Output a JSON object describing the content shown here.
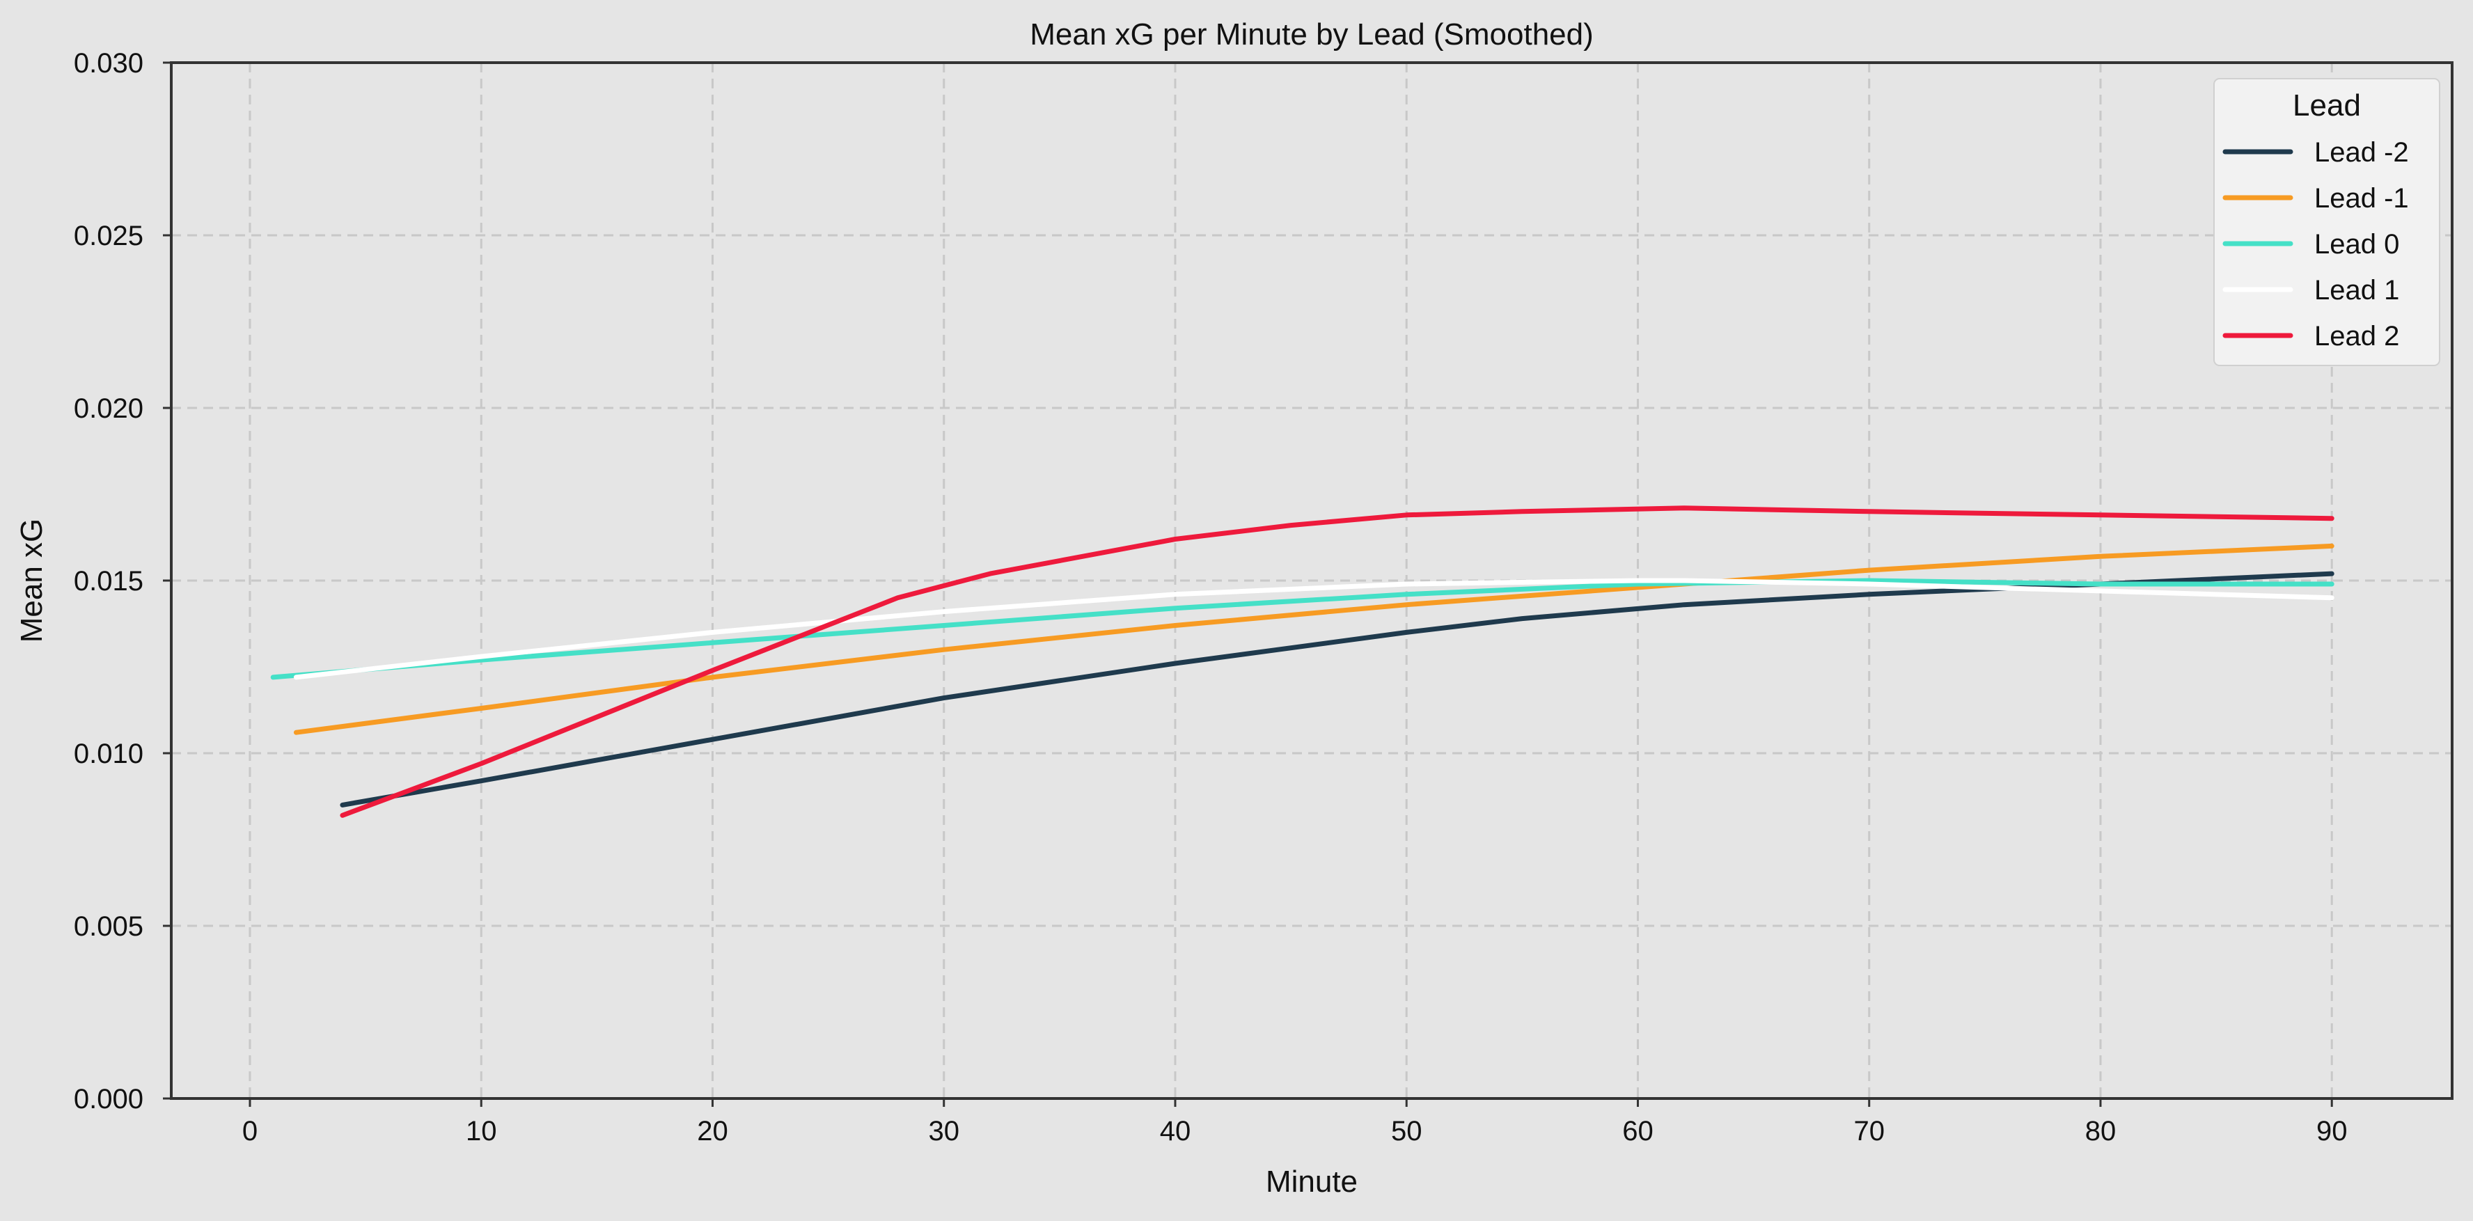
{
  "chart_data": {
    "type": "line",
    "title": "Mean xG per Minute by Lead (Smoothed)",
    "xlabel": "Minute",
    "ylabel": "Mean xG",
    "xlim": [
      -3.4,
      95.2
    ],
    "ylim": [
      0,
      0.03
    ],
    "xticks": [
      0,
      10,
      20,
      30,
      40,
      50,
      60,
      70,
      80,
      90
    ],
    "xtick_labels": [
      "0",
      "10",
      "20",
      "30",
      "40",
      "50",
      "60",
      "70",
      "80",
      "90"
    ],
    "yticks": [
      0,
      0.005,
      0.01,
      0.015,
      0.02,
      0.025,
      0.03
    ],
    "ytick_labels": [
      "0.000",
      "0.005",
      "0.010",
      "0.015",
      "0.020",
      "0.025",
      "0.030"
    ],
    "grid": true,
    "background_color": "#e5e5e5",
    "legend": {
      "title": "Lead",
      "placement": "top-right"
    },
    "series": [
      {
        "name": "Lead -2",
        "color": "#1f3a4d",
        "x": [
          4,
          10,
          20,
          30,
          40,
          50,
          55,
          62,
          70,
          80,
          90
        ],
        "y": [
          0.0085,
          0.0092,
          0.0104,
          0.0116,
          0.0126,
          0.0135,
          0.0139,
          0.0143,
          0.0146,
          0.0149,
          0.0152
        ]
      },
      {
        "name": "Lead -1",
        "color": "#f79b23",
        "x": [
          2,
          10,
          20,
          30,
          40,
          50,
          62,
          70,
          80,
          90
        ],
        "y": [
          0.0106,
          0.0113,
          0.0122,
          0.013,
          0.0137,
          0.0143,
          0.0149,
          0.0153,
          0.0157,
          0.016
        ]
      },
      {
        "name": "Lead 0",
        "color": "#45e0c7",
        "x": [
          1,
          10,
          20,
          30,
          40,
          50,
          60,
          70,
          80,
          90
        ],
        "y": [
          0.0122,
          0.0127,
          0.0132,
          0.0137,
          0.0142,
          0.0146,
          0.0149,
          0.015,
          0.0149,
          0.0149
        ]
      },
      {
        "name": "Lead 1",
        "color": "#ffffff",
        "x": [
          2,
          10,
          20,
          30,
          40,
          50,
          60,
          62,
          70,
          80,
          90
        ],
        "y": [
          0.0122,
          0.0128,
          0.0135,
          0.0141,
          0.0146,
          0.0149,
          0.015,
          0.015,
          0.0149,
          0.0147,
          0.0145
        ]
      },
      {
        "name": "Lead 2",
        "color": "#ee1a3c",
        "x": [
          4,
          10,
          20,
          28,
          32,
          40,
          45,
          50,
          55,
          62,
          70,
          80,
          90
        ],
        "y": [
          0.0082,
          0.0097,
          0.0124,
          0.0145,
          0.0152,
          0.0162,
          0.0166,
          0.0169,
          0.017,
          0.0171,
          0.017,
          0.0169,
          0.0168
        ]
      }
    ]
  }
}
